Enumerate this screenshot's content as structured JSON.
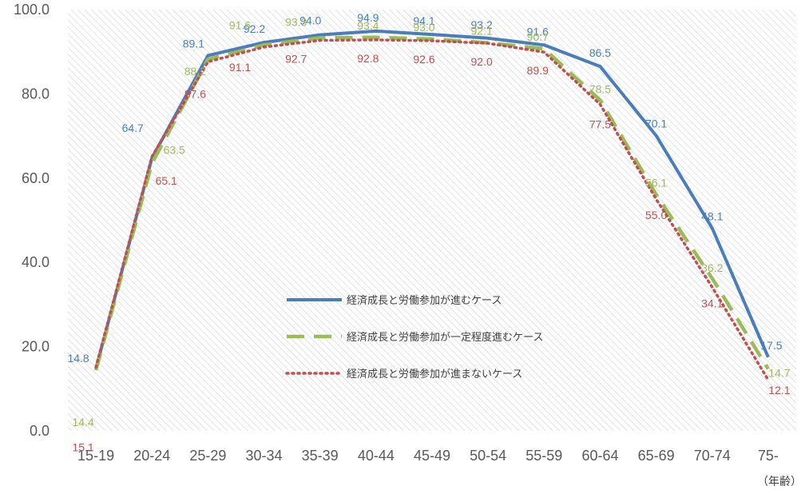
{
  "chart_data": {
    "type": "line",
    "categories": [
      "15-19",
      "20-24",
      "25-29",
      "30-34",
      "35-39",
      "40-44",
      "45-49",
      "50-54",
      "55-59",
      "60-64",
      "65-69",
      "70-74",
      "75-"
    ],
    "series": [
      {
        "name": "経済成長と労働参加が進むケース",
        "color": "#4a7ebb",
        "style": "solid",
        "values": [
          14.8,
          64.7,
          89.1,
          92.2,
          94.0,
          94.9,
          94.1,
          93.2,
          91.6,
          86.5,
          70.1,
          48.1,
          17.5
        ],
        "labels": [
          "14.8",
          "64.7",
          "89.1",
          "92.2",
          "94.0",
          "94.9",
          "94.1",
          "93.2",
          "91.6",
          "86.5",
          "70.1",
          "48.1",
          "17.5"
        ]
      },
      {
        "name": "経済成長と労働参加が一定程度進むケース",
        "color": "#9bbb59",
        "style": "dashed",
        "values": [
          14.4,
          63.5,
          88.2,
          91.6,
          93.3,
          93.4,
          93.0,
          92.1,
          90.7,
          78.5,
          56.1,
          36.2,
          14.7
        ],
        "labels": [
          "14.4",
          "63.5",
          "88.2",
          "91.6",
          "93.3",
          "93.4",
          "93.0",
          "92.1",
          "90.7",
          "78.5",
          "56.1",
          "36.2",
          "14.7"
        ]
      },
      {
        "name": "経済成長と労働参加が進まないケース",
        "color": "#c0504d",
        "style": "dotted",
        "values": [
          15.1,
          65.1,
          87.6,
          91.1,
          92.7,
          92.8,
          92.6,
          92.0,
          89.9,
          77.5,
          55.0,
          34.1,
          12.1
        ],
        "labels": [
          "15.1",
          "65.1",
          "87.6",
          "91.1",
          "92.7",
          "92.8",
          "92.6",
          "92.0",
          "89.9",
          "77.5",
          "55.0",
          "34.1",
          "12.1"
        ]
      }
    ],
    "yticks": [
      "0.0",
      "20.0",
      "40.0",
      "60.0",
      "80.0",
      "100.0"
    ],
    "ylim": [
      0,
      100
    ],
    "xunit": "（年齢）",
    "legend_position": "center",
    "grid": false
  }
}
